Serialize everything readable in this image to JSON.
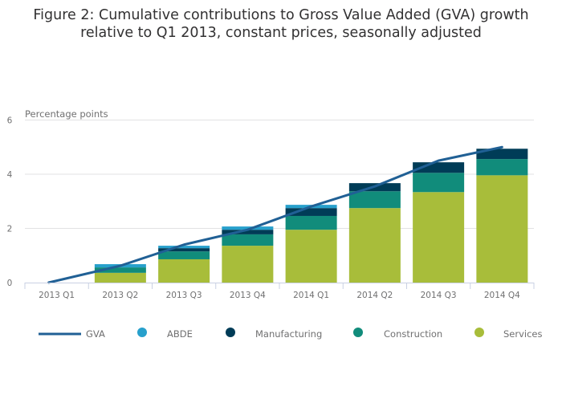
{
  "chart_data": {
    "type": "bar",
    "stacked": true,
    "title_lines": [
      "Figure 2: Cumulative contributions to Gross Value Added (GVA) growth",
      "relative to Q1 2013, constant prices, seasonally adjusted"
    ],
    "ylabel": "Percentage points",
    "xlabel": "",
    "ylim": [
      0,
      6
    ],
    "yticks": [
      0,
      2,
      4,
      6
    ],
    "grid": true,
    "legend_position": "bottom",
    "categories": [
      "2013 Q1",
      "2013 Q2",
      "2013 Q3",
      "2013 Q4",
      "2014 Q1",
      "2014 Q2",
      "2014 Q3",
      "2014 Q4"
    ],
    "series": [
      {
        "name": "Services",
        "kind": "bar",
        "color": "#a8bd3a",
        "values": [
          0,
          0.36,
          0.86,
          1.36,
          1.95,
          2.75,
          3.34,
          3.96
        ]
      },
      {
        "name": "Construction",
        "kind": "bar",
        "color": "#118c7b",
        "values": [
          0,
          0.2,
          0.29,
          0.42,
          0.51,
          0.62,
          0.71,
          0.6
        ]
      },
      {
        "name": "Manufacturing",
        "kind": "bar",
        "color": "#003c57",
        "values": [
          0,
          0,
          0.12,
          0.17,
          0.29,
          0.3,
          0.39,
          0.38
        ]
      },
      {
        "name": "ABDE",
        "kind": "bar",
        "color": "#27a0cc",
        "values": [
          0,
          0.12,
          0.09,
          0.12,
          0.12,
          0,
          0,
          0
        ]
      },
      {
        "name": "GVA",
        "kind": "line",
        "color": "#206095",
        "values": [
          0,
          0.62,
          1.4,
          1.95,
          2.81,
          3.55,
          4.5,
          5.0
        ]
      }
    ],
    "legend_order": [
      "GVA",
      "ABDE",
      "Manufacturing",
      "Construction",
      "Services"
    ]
  }
}
